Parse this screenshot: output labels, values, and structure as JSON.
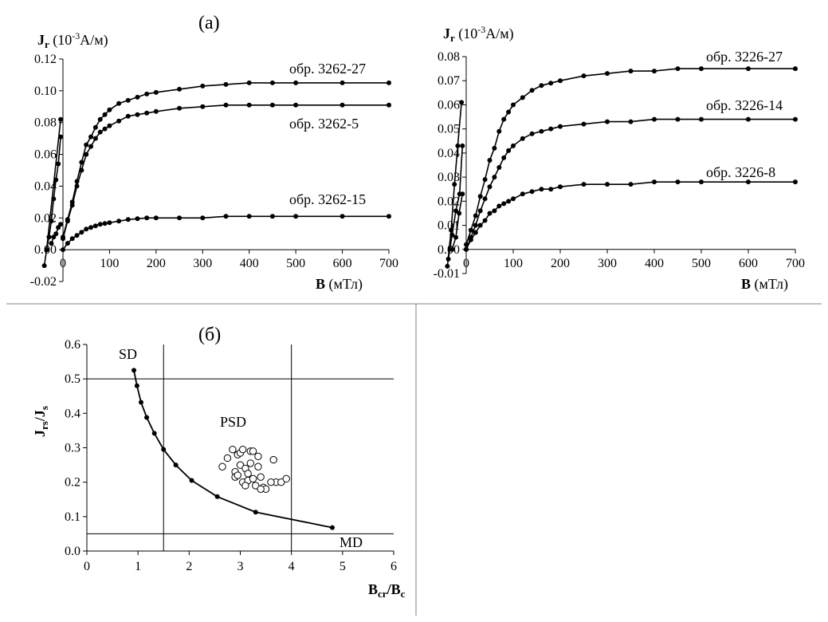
{
  "panel_a_label": "(а)",
  "panel_b_label": "(б)",
  "chart_data": [
    {
      "type": "line",
      "id": "a-left",
      "ylabel_main": "J",
      "ylabel_sub": "r",
      "ylabel_unit_pre": " (10",
      "ylabel_unit_sup": "-3",
      "ylabel_unit_post": "А/м)",
      "xlabel_main": "B",
      "xlabel_unit": " (мТл)",
      "xlim": [
        0,
        700
      ],
      "ylim": [
        -0.02,
        0.12
      ],
      "xticks": [
        0,
        100,
        200,
        300,
        400,
        500,
        600,
        700
      ],
      "xtick_labels": [
        "0",
        "100",
        "200",
        "300",
        "400",
        "500",
        "600",
        "700"
      ],
      "yticks": [
        -0.02,
        0,
        0.02,
        0.04,
        0.06,
        0.08,
        0.1,
        0.12
      ],
      "ytick_labels": [
        "-0.02",
        "0.00",
        "0.02",
        "0.04",
        "0.06",
        "0.08",
        "0.10",
        "0.12"
      ],
      "series": [
        {
          "name": "обр. 3262-27",
          "x": [
            0,
            10,
            20,
            30,
            40,
            50,
            60,
            70,
            80,
            90,
            100,
            120,
            140,
            160,
            180,
            200,
            250,
            300,
            350,
            400,
            450,
            500,
            600,
            700
          ],
          "y": [
            0.008,
            0.019,
            0.03,
            0.043,
            0.055,
            0.066,
            0.071,
            0.077,
            0.082,
            0.085,
            0.088,
            0.092,
            0.094,
            0.096,
            0.098,
            0.099,
            0.101,
            0.103,
            0.104,
            0.105,
            0.105,
            0.105,
            0.105,
            0.105
          ]
        },
        {
          "name": "обр. 3262-5",
          "x": [
            0,
            10,
            20,
            30,
            40,
            50,
            60,
            70,
            80,
            90,
            100,
            120,
            140,
            160,
            180,
            200,
            250,
            300,
            350,
            400,
            450,
            500,
            600,
            700
          ],
          "y": [
            0.007,
            0.018,
            0.028,
            0.04,
            0.05,
            0.06,
            0.065,
            0.07,
            0.074,
            0.076,
            0.078,
            0.081,
            0.084,
            0.085,
            0.086,
            0.087,
            0.089,
            0.09,
            0.091,
            0.091,
            0.091,
            0.091,
            0.091,
            0.091
          ]
        },
        {
          "name": "обр. 3262-15",
          "x": [
            0,
            10,
            20,
            30,
            40,
            50,
            60,
            70,
            80,
            90,
            100,
            120,
            140,
            160,
            180,
            200,
            250,
            300,
            350,
            400,
            450,
            500,
            600,
            700
          ],
          "y": [
            0.0,
            0.004,
            0.007,
            0.009,
            0.011,
            0.013,
            0.014,
            0.015,
            0.016,
            0.0165,
            0.017,
            0.018,
            0.019,
            0.0195,
            0.02,
            0.02,
            0.02,
            0.02,
            0.021,
            0.021,
            0.021,
            0.021,
            0.021,
            0.021
          ]
        }
      ],
      "series_labels": [
        "обр. 3262-27",
        "обр. 3262-5",
        "обр. 3262-15"
      ],
      "inset_lines": [
        {
          "x": [
            -40,
            -35,
            -30,
            -25,
            -20,
            -15,
            -10,
            -5
          ],
          "y": [
            -0.01,
            0.0,
            0.008,
            0.018,
            0.032,
            0.044,
            0.054,
            0.071
          ]
        },
        {
          "x": [
            -25,
            -20,
            -15,
            -10,
            -5
          ],
          "y": [
            0.004,
            0.008,
            0.01,
            0.014,
            0.016
          ]
        },
        {
          "x": [
            -35,
            -5
          ],
          "y": [
            0.0,
            0.082
          ]
        }
      ]
    },
    {
      "type": "line",
      "id": "a-right",
      "ylabel_main": "J",
      "ylabel_sub": "r",
      "ylabel_unit_pre": " (10",
      "ylabel_unit_sup": "-3",
      "ylabel_unit_post": "А/м)",
      "xlabel_main": "B",
      "xlabel_unit": " (мТл)",
      "xlim": [
        0,
        700
      ],
      "ylim": [
        -0.01,
        0.08
      ],
      "xticks": [
        0,
        100,
        200,
        300,
        400,
        500,
        600,
        700
      ],
      "xtick_labels": [
        "0",
        "100",
        "200",
        "300",
        "400",
        "500",
        "600",
        "700"
      ],
      "yticks": [
        -0.01,
        0,
        0.01,
        0.02,
        0.03,
        0.04,
        0.05,
        0.06,
        0.07,
        0.08
      ],
      "ytick_labels": [
        "-0.01",
        "0.00",
        "0.01",
        "0.02",
        "0.03",
        "0.04",
        "0.05",
        "0.06",
        "0.07",
        "0.08"
      ],
      "series": [
        {
          "name": "обр. 3226-27",
          "x": [
            0,
            10,
            20,
            30,
            40,
            50,
            60,
            70,
            80,
            90,
            100,
            120,
            140,
            160,
            180,
            200,
            250,
            300,
            350,
            400,
            450,
            500,
            600,
            700
          ],
          "y": [
            0.002,
            0.008,
            0.014,
            0.022,
            0.029,
            0.037,
            0.042,
            0.049,
            0.054,
            0.057,
            0.06,
            0.063,
            0.066,
            0.068,
            0.069,
            0.07,
            0.072,
            0.073,
            0.074,
            0.074,
            0.075,
            0.075,
            0.075,
            0.075
          ]
        },
        {
          "name": "обр. 3226-14",
          "x": [
            0,
            10,
            20,
            30,
            40,
            50,
            60,
            70,
            80,
            90,
            100,
            120,
            140,
            160,
            180,
            200,
            250,
            300,
            350,
            400,
            450,
            500,
            600,
            700
          ],
          "y": [
            0.0,
            0.005,
            0.01,
            0.016,
            0.021,
            0.026,
            0.03,
            0.034,
            0.038,
            0.041,
            0.043,
            0.046,
            0.048,
            0.049,
            0.05,
            0.051,
            0.052,
            0.053,
            0.053,
            0.054,
            0.054,
            0.054,
            0.054,
            0.054
          ]
        },
        {
          "name": "обр. 3226-8",
          "x": [
            0,
            10,
            20,
            30,
            40,
            50,
            60,
            70,
            80,
            90,
            100,
            120,
            140,
            160,
            180,
            200,
            250,
            300,
            350,
            400,
            450,
            500,
            600,
            700
          ],
          "y": [
            0.0,
            0.004,
            0.007,
            0.01,
            0.012,
            0.015,
            0.016,
            0.018,
            0.019,
            0.02,
            0.021,
            0.023,
            0.024,
            0.025,
            0.025,
            0.026,
            0.027,
            0.027,
            0.027,
            0.028,
            0.028,
            0.028,
            0.028,
            0.028
          ]
        }
      ],
      "series_labels": [
        "обр. 3226-27",
        "обр. 3226-14",
        "обр. 3226-8"
      ],
      "inset_lines": [
        {
          "x": [
            -40,
            -32,
            -25,
            -18,
            -10
          ],
          "y": [
            -0.007,
            0.008,
            0.027,
            0.043,
            0.061
          ]
        },
        {
          "x": [
            -38,
            -30,
            -22,
            -14,
            -8
          ],
          "y": [
            -0.004,
            0.006,
            0.016,
            0.023,
            0.043
          ]
        },
        {
          "x": [
            -30,
            -22,
            -15,
            -8
          ],
          "y": [
            0.0,
            0.005,
            0.015,
            0.023
          ]
        }
      ]
    },
    {
      "type": "scatter",
      "id": "b",
      "ylabel_parts": [
        {
          "t": "J",
          "sub": false
        },
        {
          "t": "rs",
          "sub": true
        },
        {
          "t": "/J",
          "sub": false
        },
        {
          "t": "s",
          "sub": true
        }
      ],
      "xlabel_parts": [
        {
          "t": "B",
          "sub": false
        },
        {
          "t": "cr",
          "sub": true
        },
        {
          "t": "/B",
          "sub": false
        },
        {
          "t": "c",
          "sub": true
        }
      ],
      "xlim": [
        0,
        6
      ],
      "ylim": [
        0,
        0.6
      ],
      "xticks": [
        0,
        1,
        2,
        3,
        4,
        5,
        6
      ],
      "xtick_labels": [
        "0",
        "1",
        "2",
        "3",
        "4",
        "5",
        "6"
      ],
      "yticks": [
        0,
        0.1,
        0.2,
        0.3,
        0.4,
        0.5,
        0.6
      ],
      "ytick_labels": [
        "0.0",
        "0.1",
        "0.2",
        "0.3",
        "0.4",
        "0.5",
        "0.6"
      ],
      "region_labels": {
        "sd": "SD",
        "psd": "PSD",
        "md": "MD"
      },
      "hlines": [
        0.5,
        0.05
      ],
      "vlines": [
        1.5,
        4.0
      ],
      "curve": {
        "x": [
          0.92,
          0.98,
          1.06,
          1.17,
          1.32,
          1.5,
          1.74,
          2.05,
          2.55,
          3.3,
          4.8
        ],
        "y": [
          0.525,
          0.48,
          0.432,
          0.388,
          0.342,
          0.295,
          0.25,
          0.205,
          0.158,
          0.113,
          0.068
        ]
      },
      "open_points": {
        "x": [
          2.65,
          2.75,
          2.85,
          2.9,
          2.95,
          3.0,
          3.0,
          3.05,
          3.1,
          3.15,
          3.2,
          3.25,
          3.3,
          3.35,
          3.4,
          3.45,
          3.5,
          3.65,
          3.7,
          3.8,
          3.9,
          2.9,
          3.05,
          3.2,
          3.35,
          3.1,
          3.25,
          3.4,
          2.95,
          3.15,
          3.6
        ],
        "y": [
          0.245,
          0.27,
          0.295,
          0.23,
          0.28,
          0.285,
          0.25,
          0.2,
          0.24,
          0.205,
          0.29,
          0.21,
          0.19,
          0.275,
          0.215,
          0.185,
          0.18,
          0.265,
          0.2,
          0.2,
          0.21,
          0.215,
          0.295,
          0.255,
          0.245,
          0.19,
          0.29,
          0.18,
          0.22,
          0.225,
          0.2
        ]
      }
    }
  ]
}
